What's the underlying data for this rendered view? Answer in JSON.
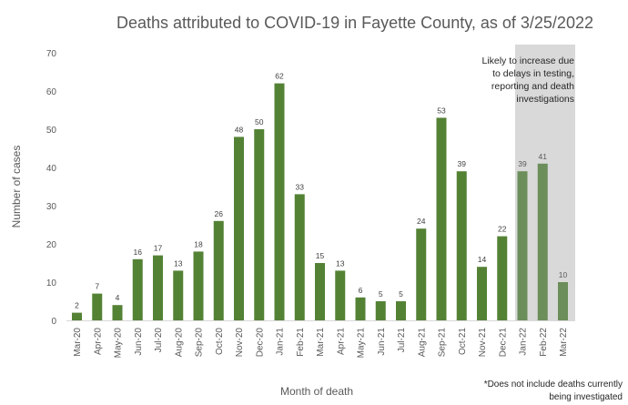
{
  "chart_data": {
    "type": "bar",
    "title": "Deaths attributed to COVID-19 in Fayette County, as of 3/25/2022",
    "xlabel": "Month of death",
    "ylabel": "Number of cases",
    "ylim": [
      0,
      70
    ],
    "yticks": [
      0,
      10,
      20,
      30,
      40,
      50,
      60,
      70
    ],
    "grid": false,
    "categories": [
      "Mar-20",
      "Apr-20",
      "May-20",
      "Jun-20",
      "Jul-20",
      "Aug-20",
      "Sep-20",
      "Oct-20",
      "Nov-20",
      "Dec-20",
      "Jan-21",
      "Feb-21",
      "Mar-21",
      "Apr-21",
      "May-21",
      "Jun-21",
      "Jul-21",
      "Aug-21",
      "Sep-21",
      "Oct-21",
      "Nov-21",
      "Dec-21",
      "Jan-22",
      "Feb-22",
      "Mar-22"
    ],
    "values": [
      2,
      7,
      4,
      16,
      17,
      13,
      18,
      26,
      48,
      50,
      62,
      33,
      15,
      13,
      6,
      5,
      5,
      24,
      53,
      39,
      14,
      22,
      39,
      41,
      10
    ],
    "pending_categories": [
      "Jan-22",
      "Feb-22",
      "Mar-22"
    ],
    "annotation": [
      "Likely to increase due",
      "to delays in testing,",
      "reporting and death",
      "investigations"
    ],
    "footnote": [
      "*Does not include deaths currently",
      "being investigated"
    ],
    "colors": {
      "bar": "#548235",
      "bar_pending": "#6b8e5a",
      "pending_shade": "#d9d9d9",
      "axis": "#d9d9d9"
    }
  }
}
